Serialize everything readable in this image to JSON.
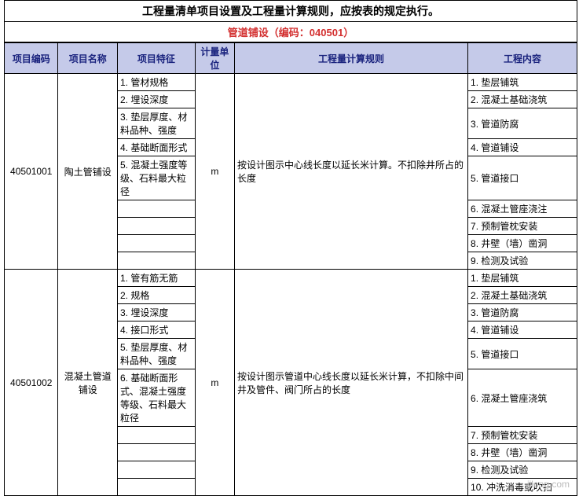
{
  "title": "工程量清单项目设置及工程量计算规则，应按表的规定执行。",
  "subtitle_prefix": "管道铺设（编码：",
  "subtitle_code": "040501",
  "subtitle_suffix": "）",
  "subtitle_color": "#d32f2f",
  "header_bg": "#c5cae9",
  "header_text_color": "#1a237e",
  "headers": [
    "项目编码",
    "项目名称",
    "项目特征",
    "计量单位",
    "工程量计算规则",
    "工程内容"
  ],
  "rows": [
    {
      "code": "40501001",
      "name": "陶土管铺设",
      "unit": "m",
      "rule": "按设计图示中心线长度以延长米计算。不扣除井所占的长度",
      "features": [
        "1. 管材规格",
        "2. 埋设深度",
        "3. 垫层厚度、材料品种、强度",
        "4. 基础断面形式",
        "5. 混凝土强度等级、石料最大粒径",
        "",
        "",
        "",
        ""
      ],
      "contents": [
        "1. 垫层铺筑",
        "2. 混凝土基础浇筑",
        "3. 管道防腐",
        "4. 管道铺设",
        "5. 管道接口",
        "6. 混凝土管座浇注",
        "7. 预制管枕安装",
        "8. 井壁（墙）凿洞",
        "9. 检测及试验"
      ],
      "feat_spans": [
        1,
        1,
        2,
        1,
        2,
        1,
        1,
        1,
        1
      ],
      "cont_spans": [
        1,
        1,
        2,
        1,
        2,
        1,
        1,
        1,
        1
      ]
    },
    {
      "code": "40501002",
      "name": "混凝土管道铺设",
      "unit": "m",
      "rule": "按设计图示管道中心线长度以延长米计算，不扣除中间井及管件、阀门所占的长度",
      "features": [
        "1. 管有筋无筋",
        "2. 规格",
        "3. 埋设深度",
        "4. 接口形式",
        "5. 垫层厚度、材料品种、强度",
        "6. 基础断面形式、混凝土强度等级、石料最大粒径",
        "",
        "",
        "",
        ""
      ],
      "contents": [
        "1. 垫层铺筑",
        "2. 混凝土基础浇筑",
        "3. 管道防腐",
        "4. 管道铺设",
        "5. 管道接口",
        "6. 混凝土管座浇筑",
        "7. 预制管枕安装",
        "8. 井壁（墙）凿洞",
        "9. 检测及试验",
        "10. 冲洗消毒或吹扫"
      ],
      "feat_spans": [
        1,
        1,
        1,
        1,
        2,
        4,
        1,
        1,
        1,
        1
      ],
      "cont_spans": [
        1,
        1,
        1,
        1,
        2,
        4,
        1,
        1,
        1,
        1
      ]
    }
  ],
  "watermark": "iilong.com"
}
